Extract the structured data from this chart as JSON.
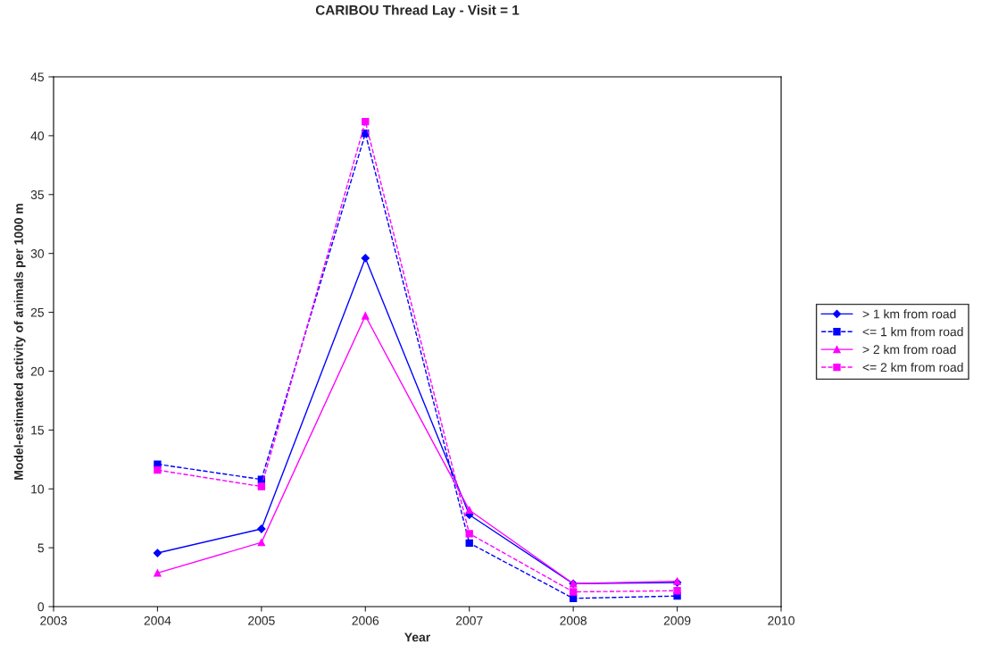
{
  "chart_data": {
    "type": "line",
    "title": "CARIBOU Thread Lay - Visit = 1",
    "xlabel": "Year",
    "ylabel": "Model-estimated activity of animals per 1000 m",
    "x": [
      2004,
      2005,
      2006,
      2007,
      2008,
      2009
    ],
    "series": [
      {
        "name": "> 1 km from road",
        "color": "#0000ff",
        "marker": "diamond",
        "line_style": "solid",
        "values": [
          4.55,
          6.6,
          29.6,
          7.8,
          1.95,
          2.05
        ]
      },
      {
        "name": "<= 1 km from road",
        "color": "#0000ff",
        "marker": "square",
        "line_style": "dashed",
        "values": [
          12.1,
          10.8,
          40.2,
          5.4,
          0.7,
          0.9
        ]
      },
      {
        "name": "> 2 km from road",
        "color": "#ff00ff",
        "marker": "triangle",
        "line_style": "solid",
        "values": [
          2.85,
          5.45,
          24.7,
          8.2,
          1.95,
          2.15
        ]
      },
      {
        "name": "<= 2 km from road",
        "color": "#ff00ff",
        "marker": "square",
        "line_style": "dashed",
        "values": [
          11.6,
          10.2,
          41.2,
          6.2,
          1.25,
          1.35
        ]
      }
    ],
    "xlim": [
      2003,
      2010
    ],
    "xticks": [
      2003,
      2004,
      2005,
      2006,
      2007,
      2008,
      2009,
      2010
    ],
    "ylim": [
      0,
      45
    ],
    "yticks": [
      0,
      5,
      10,
      15,
      20,
      25,
      30,
      35,
      40,
      45
    ],
    "grid": false,
    "legend": "right"
  }
}
